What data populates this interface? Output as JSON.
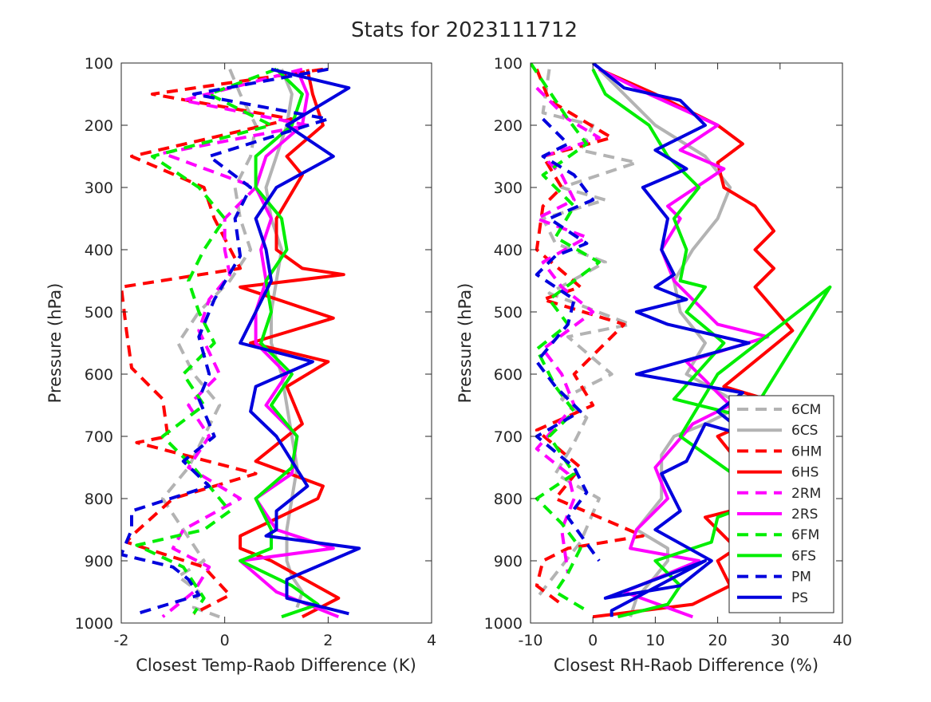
{
  "figure": {
    "title": "Stats for 2023111712"
  },
  "chart_data": [
    {
      "type": "line",
      "xlabel": "Closest Temp-Raob Difference (K)",
      "ylabel": "Pressure (hPa)",
      "xlim": [
        -2,
        4
      ],
      "ylim": [
        1000,
        100
      ],
      "y_reversed": true,
      "xticks": [
        "-2",
        "0",
        "2",
        "4"
      ],
      "yticks": [
        "100",
        "200",
        "300",
        "400",
        "500",
        "600",
        "700",
        "800",
        "900",
        "1000"
      ],
      "series": [
        {
          "name": "6CM",
          "color": "#b3b3b3",
          "dash": true,
          "x": [
            0.1,
            0.3,
            0.6,
            0.5,
            0.2,
            0.3,
            0.5,
            0.1,
            -0.5,
            -0.9,
            -0.6,
            -0.1,
            -0.4,
            -0.7,
            -1.2,
            -0.8,
            -0.4,
            -0.9,
            -0.5,
            -0.6,
            -0.1
          ],
          "y": [
            110,
            150,
            200,
            250,
            300,
            350,
            400,
            450,
            500,
            550,
            600,
            650,
            700,
            750,
            800,
            850,
            900,
            925,
            950,
            975,
            990
          ]
        },
        {
          "name": "6CS",
          "color": "#b3b3b3",
          "dash": false,
          "x": [
            1.1,
            1.3,
            1.2,
            1.0,
            0.8,
            0.9,
            1.1,
            1.0,
            0.9,
            0.9,
            1.1,
            1.2,
            1.3,
            1.4,
            1.3,
            1.2,
            1.2,
            1.3,
            1.5,
            1.4
          ],
          "y": [
            110,
            150,
            200,
            250,
            300,
            350,
            400,
            450,
            500,
            550,
            600,
            650,
            700,
            750,
            800,
            850,
            900,
            925,
            950,
            975
          ]
        },
        {
          "name": "6HM",
          "color": "#ff0000",
          "dash": true,
          "x": [
            1.9,
            -1.4,
            1.3,
            -1.8,
            -0.4,
            -0.2,
            0.3,
            -2.0,
            -1.9,
            -1.8,
            -1.2,
            -1.1,
            -1.7,
            0.6,
            -1.0,
            -1.8,
            -1.9,
            -0.4,
            0.1,
            -0.6
          ],
          "y": [
            110,
            150,
            190,
            250,
            300,
            350,
            430,
            460,
            530,
            590,
            640,
            700,
            710,
            760,
            800,
            860,
            870,
            910,
            955,
            985
          ]
        },
        {
          "name": "6HS",
          "color": "#ff0000",
          "dash": false,
          "x": [
            1.6,
            1.7,
            1.9,
            1.2,
            1.5,
            1.0,
            1.0,
            1.5,
            2.3,
            0.3,
            2.1,
            0.5,
            2.0,
            1.2,
            1.5,
            0.6,
            1.9,
            1.8,
            0.3,
            0.3,
            0.9,
            2.2,
            1.5
          ],
          "y": [
            110,
            150,
            200,
            250,
            280,
            350,
            400,
            430,
            440,
            460,
            510,
            550,
            580,
            620,
            680,
            740,
            780,
            800,
            860,
            880,
            900,
            960,
            990
          ]
        },
        {
          "name": "2RM",
          "color": "#ff00ff",
          "dash": true,
          "x": [
            1.5,
            -0.8,
            1.6,
            -1.2,
            0.6,
            0.0,
            0.0,
            0.1,
            -0.3,
            -0.5,
            -0.1,
            -0.7,
            -0.3,
            -0.7,
            0.3,
            -0.8,
            -1.0,
            -0.3,
            -0.6,
            -1.2
          ],
          "y": [
            110,
            160,
            200,
            245,
            300,
            350,
            400,
            440,
            480,
            530,
            600,
            650,
            700,
            750,
            800,
            850,
            880,
            910,
            950,
            990
          ]
        },
        {
          "name": "2RS",
          "color": "#ff00ff",
          "dash": false,
          "x": [
            1.4,
            1.6,
            1.5,
            0.8,
            0.6,
            0.9,
            0.7,
            0.8,
            0.6,
            0.6,
            1.2,
            0.8,
            1.4,
            1.3,
            0.6,
            1.0,
            2.1,
            0.3,
            1.0,
            2.2
          ],
          "y": [
            110,
            150,
            200,
            250,
            300,
            350,
            400,
            450,
            500,
            550,
            600,
            650,
            700,
            760,
            800,
            850,
            880,
            900,
            950,
            990
          ]
        },
        {
          "name": "6FM",
          "color": "#00ee00",
          "dash": true,
          "x": [
            1.0,
            -0.3,
            0.9,
            -1.4,
            -0.5,
            0.0,
            -0.4,
            -0.7,
            -0.5,
            -0.2,
            -0.8,
            -0.4,
            -1.2,
            -0.6,
            0.1,
            -0.4,
            -1.7,
            -0.8,
            -0.4,
            -0.6
          ],
          "y": [
            110,
            150,
            200,
            250,
            300,
            350,
            400,
            450,
            500,
            550,
            600,
            650,
            700,
            750,
            820,
            850,
            875,
            910,
            960,
            985
          ]
        },
        {
          "name": "6FS",
          "color": "#00ee00",
          "dash": false,
          "x": [
            1.0,
            1.5,
            1.3,
            0.6,
            0.6,
            1.1,
            1.2,
            0.8,
            0.9,
            0.7,
            1.3,
            0.9,
            1.4,
            1.3,
            0.6,
            0.9,
            0.9,
            0.3,
            1.3,
            1.8,
            1.1
          ],
          "y": [
            110,
            150,
            200,
            250,
            300,
            350,
            400,
            450,
            500,
            550,
            600,
            650,
            700,
            750,
            800,
            850,
            880,
            900,
            940,
            970,
            990
          ]
        },
        {
          "name": "PM",
          "color": "#0000dd",
          "dash": true,
          "x": [
            2.0,
            -0.6,
            2.0,
            -0.3,
            0.5,
            0.2,
            0.3,
            -0.2,
            -0.5,
            -0.3,
            -0.5,
            -0.2,
            -0.8,
            -0.3,
            -1.8,
            -1.8,
            -2.0,
            -1.0,
            -0.7,
            -0.5,
            -1.7
          ],
          "y": [
            110,
            150,
            190,
            250,
            300,
            350,
            410,
            480,
            540,
            600,
            640,
            700,
            740,
            780,
            820,
            850,
            890,
            910,
            930,
            955,
            985
          ]
        },
        {
          "name": "PS",
          "color": "#0000dd",
          "dash": false,
          "x": [
            0.9,
            2.4,
            1.2,
            2.1,
            1.0,
            0.6,
            0.8,
            0.9,
            0.6,
            0.3,
            1.7,
            0.6,
            0.5,
            1.0,
            1.6,
            1.0,
            1.0,
            0.8,
            2.6,
            1.2,
            1.2,
            2.4
          ],
          "y": [
            110,
            140,
            200,
            250,
            300,
            350,
            400,
            450,
            500,
            550,
            580,
            620,
            660,
            700,
            780,
            820,
            850,
            860,
            880,
            930,
            960,
            985
          ]
        }
      ]
    },
    {
      "type": "line",
      "xlabel": "Closest RH-Raob Difference (%)",
      "ylabel": "Pressure (hPa)",
      "xlim": [
        -10,
        40
      ],
      "ylim": [
        1000,
        100
      ],
      "y_reversed": true,
      "xticks": [
        "-10",
        "0",
        "10",
        "20",
        "30",
        "40"
      ],
      "yticks": [
        "100",
        "200",
        "300",
        "400",
        "500",
        "600",
        "700",
        "800",
        "900",
        "1000"
      ],
      "series": [
        {
          "name": "6CM",
          "color": "#b3b3b3",
          "dash": true,
          "x": [
            -7,
            -8,
            0,
            -2,
            7,
            -5,
            2,
            -8,
            -6,
            2,
            -7,
            6,
            -4,
            3,
            -5,
            -1,
            -3,
            -6,
            1,
            -2,
            -9
          ],
          "y": [
            110,
            180,
            200,
            240,
            260,
            300,
            320,
            350,
            390,
            420,
            470,
            520,
            540,
            600,
            640,
            670,
            710,
            760,
            800,
            870,
            960
          ]
        },
        {
          "name": "6CS",
          "color": "#b3b3b3",
          "dash": false,
          "x": [
            1,
            5,
            10,
            18,
            22,
            20,
            16,
            13,
            14,
            18,
            15,
            24,
            18,
            13,
            11,
            11,
            7,
            12,
            12,
            10,
            7,
            6
          ],
          "y": [
            110,
            150,
            200,
            250,
            300,
            350,
            400,
            450,
            500,
            550,
            600,
            650,
            680,
            700,
            730,
            800,
            850,
            880,
            900,
            925,
            960,
            990
          ]
        },
        {
          "name": "6HM",
          "color": "#ff0000",
          "dash": true,
          "x": [
            -9,
            -7,
            3,
            -8,
            -5,
            -8,
            -9,
            -2,
            -8,
            5,
            -3,
            0,
            -9,
            -2,
            -6,
            8,
            -4,
            -8,
            -9,
            -5
          ],
          "y": [
            110,
            160,
            220,
            250,
            300,
            330,
            400,
            460,
            480,
            520,
            600,
            650,
            690,
            750,
            800,
            860,
            880,
            900,
            940,
            970
          ]
        },
        {
          "name": "6HS",
          "color": "#ff0000",
          "dash": false,
          "x": [
            1,
            10,
            20,
            24,
            20,
            21,
            26,
            29,
            26,
            29,
            26,
            32,
            21,
            31,
            20,
            24,
            30,
            18,
            23,
            20,
            22,
            16,
            0
          ],
          "y": [
            110,
            150,
            200,
            230,
            260,
            300,
            330,
            370,
            400,
            430,
            460,
            530,
            620,
            650,
            700,
            750,
            800,
            830,
            880,
            900,
            940,
            970,
            990
          ]
        },
        {
          "name": "2RM",
          "color": "#ff00ff",
          "dash": true,
          "x": [
            -9,
            -4,
            1,
            -8,
            -5,
            -3,
            -9,
            -1,
            -8,
            -5,
            0,
            -8,
            -5,
            -3,
            -9,
            -4,
            -3,
            -5,
            -4
          ],
          "y": [
            140,
            190,
            220,
            250,
            280,
            320,
            350,
            380,
            420,
            460,
            500,
            560,
            600,
            650,
            720,
            760,
            800,
            850,
            920
          ]
        },
        {
          "name": "2RS",
          "color": "#ff00ff",
          "dash": false,
          "x": [
            1,
            9,
            20,
            14,
            21,
            12,
            14,
            11,
            13,
            16,
            20,
            28,
            15,
            22,
            16,
            10,
            12,
            7,
            6,
            17,
            5,
            16
          ],
          "y": [
            110,
            150,
            200,
            240,
            270,
            330,
            350,
            400,
            450,
            480,
            520,
            540,
            580,
            650,
            680,
            750,
            800,
            850,
            880,
            900,
            950,
            990
          ]
        },
        {
          "name": "6FM",
          "color": "#00ee00",
          "dash": true,
          "x": [
            -10,
            -4,
            -1,
            -8,
            -3,
            -6,
            1,
            -7,
            -4,
            -9,
            -6,
            -3,
            -7,
            -3,
            -9,
            -5,
            -2,
            -4,
            -6,
            -1
          ],
          "y": [
            100,
            190,
            230,
            280,
            330,
            380,
            420,
            480,
            520,
            560,
            620,
            660,
            700,
            760,
            800,
            840,
            880,
            920,
            950,
            980
          ]
        },
        {
          "name": "6FS",
          "color": "#00ee00",
          "dash": false,
          "x": [
            0,
            2,
            9,
            12,
            17,
            13,
            15,
            14,
            18,
            15,
            21,
            13,
            25,
            38,
            20,
            14,
            28,
            20,
            19,
            10,
            14,
            12,
            4
          ],
          "y": [
            110,
            150,
            200,
            250,
            300,
            350,
            400,
            450,
            460,
            500,
            550,
            640,
            670,
            460,
            600,
            700,
            800,
            830,
            870,
            900,
            940,
            970,
            990
          ]
        },
        {
          "name": "PM",
          "color": "#0000dd",
          "dash": true,
          "x": [
            -8,
            -4,
            -8,
            -3,
            0,
            -7,
            -1,
            -6,
            -9,
            -3,
            -4,
            -9,
            -6,
            -2,
            -9,
            -3,
            -1,
            -4,
            1
          ],
          "y": [
            190,
            230,
            250,
            280,
            320,
            350,
            390,
            410,
            440,
            480,
            520,
            580,
            620,
            660,
            700,
            750,
            790,
            830,
            900
          ]
        },
        {
          "name": "PS",
          "color": "#0000dd",
          "dash": false,
          "x": [
            0,
            5,
            14,
            18,
            10,
            15,
            8,
            12,
            11,
            13,
            10,
            15,
            7,
            12,
            25,
            7,
            24,
            20,
            25,
            18,
            15,
            11,
            14,
            10,
            19,
            14,
            2,
            18,
            3,
            3
          ],
          "y": [
            100,
            140,
            160,
            200,
            240,
            270,
            300,
            350,
            400,
            440,
            460,
            480,
            500,
            520,
            550,
            600,
            630,
            660,
            700,
            680,
            740,
            760,
            820,
            850,
            900,
            940,
            960,
            900,
            980,
            990
          ]
        }
      ]
    }
  ],
  "legend": {
    "entries": [
      {
        "name": "6CM",
        "color": "#b3b3b3",
        "dash": true
      },
      {
        "name": "6CS",
        "color": "#b3b3b3",
        "dash": false
      },
      {
        "name": "6HM",
        "color": "#ff0000",
        "dash": true
      },
      {
        "name": "6HS",
        "color": "#ff0000",
        "dash": false
      },
      {
        "name": "2RM",
        "color": "#ff00ff",
        "dash": true
      },
      {
        "name": "2RS",
        "color": "#ff00ff",
        "dash": false
      },
      {
        "name": "6FM",
        "color": "#00ee00",
        "dash": true
      },
      {
        "name": "6FS",
        "color": "#00ee00",
        "dash": false
      },
      {
        "name": "PM",
        "color": "#0000dd",
        "dash": true
      },
      {
        "name": "PS",
        "color": "#0000dd",
        "dash": false
      }
    ]
  }
}
